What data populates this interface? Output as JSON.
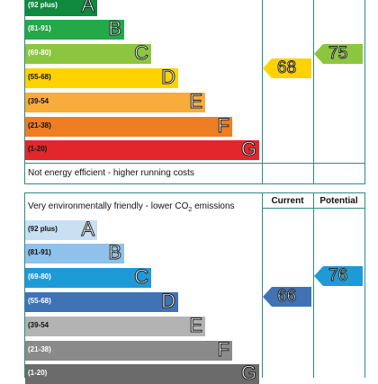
{
  "energy_chart": {
    "bands": [
      {
        "range": "(92 plus)",
        "letter": "A",
        "color": "#0f8a3e",
        "text_color": "#ffffff"
      },
      {
        "range": "(81-91)",
        "letter": "B",
        "color": "#23a84a",
        "text_color": "#ffffff"
      },
      {
        "range": "(69-80)",
        "letter": "C",
        "color": "#8cc63f",
        "text_color": "#ffffff"
      },
      {
        "range": "(55-68)",
        "letter": "D",
        "color": "#ffd200",
        "text_color": "#111111"
      },
      {
        "range": "(39-54",
        "letter": "E",
        "color": "#f7ac3c",
        "text_color": "#111111"
      },
      {
        "range": "(21-38)",
        "letter": "F",
        "color": "#ef7d22",
        "text_color": "#111111"
      },
      {
        "range": "(1-20)",
        "letter": "G",
        "color": "#e3262b",
        "text_color": "#111111"
      }
    ],
    "footer": "Not energy efficient - higher running costs",
    "current": {
      "value": "68",
      "color": "#ffd200"
    },
    "potential": {
      "value": "75",
      "color": "#8cc63f"
    }
  },
  "co2_chart": {
    "header": "Very environmentally friendly - lower CO",
    "header_sub": "2",
    "header_tail": " emissions",
    "col_current": "Current",
    "col_potential": "Potential",
    "bands": [
      {
        "range": "(92 plus)",
        "letter": "A",
        "color": "#c9dff2",
        "text_color": "#111111"
      },
      {
        "range": "(81-91)",
        "letter": "B",
        "color": "#8fc1ea",
        "text_color": "#111111"
      },
      {
        "range": "(69-80)",
        "letter": "C",
        "color": "#1e9ad6",
        "text_color": "#ffffff"
      },
      {
        "range": "(55-68)",
        "letter": "D",
        "color": "#3f73b5",
        "text_color": "#ffffff"
      },
      {
        "range": "(39-54",
        "letter": "E",
        "color": "#b3b3b3",
        "text_color": "#111111"
      },
      {
        "range": "(21-38)",
        "letter": "F",
        "color": "#8a8a8a",
        "text_color": "#ffffff"
      },
      {
        "range": "(1-20)",
        "letter": "G",
        "color": "#6b6b6b",
        "text_color": "#ffffff"
      }
    ],
    "current": {
      "value": "66",
      "color": "#3f73b5"
    },
    "potential": {
      "value": "76",
      "color": "#1e9ad6"
    }
  }
}
